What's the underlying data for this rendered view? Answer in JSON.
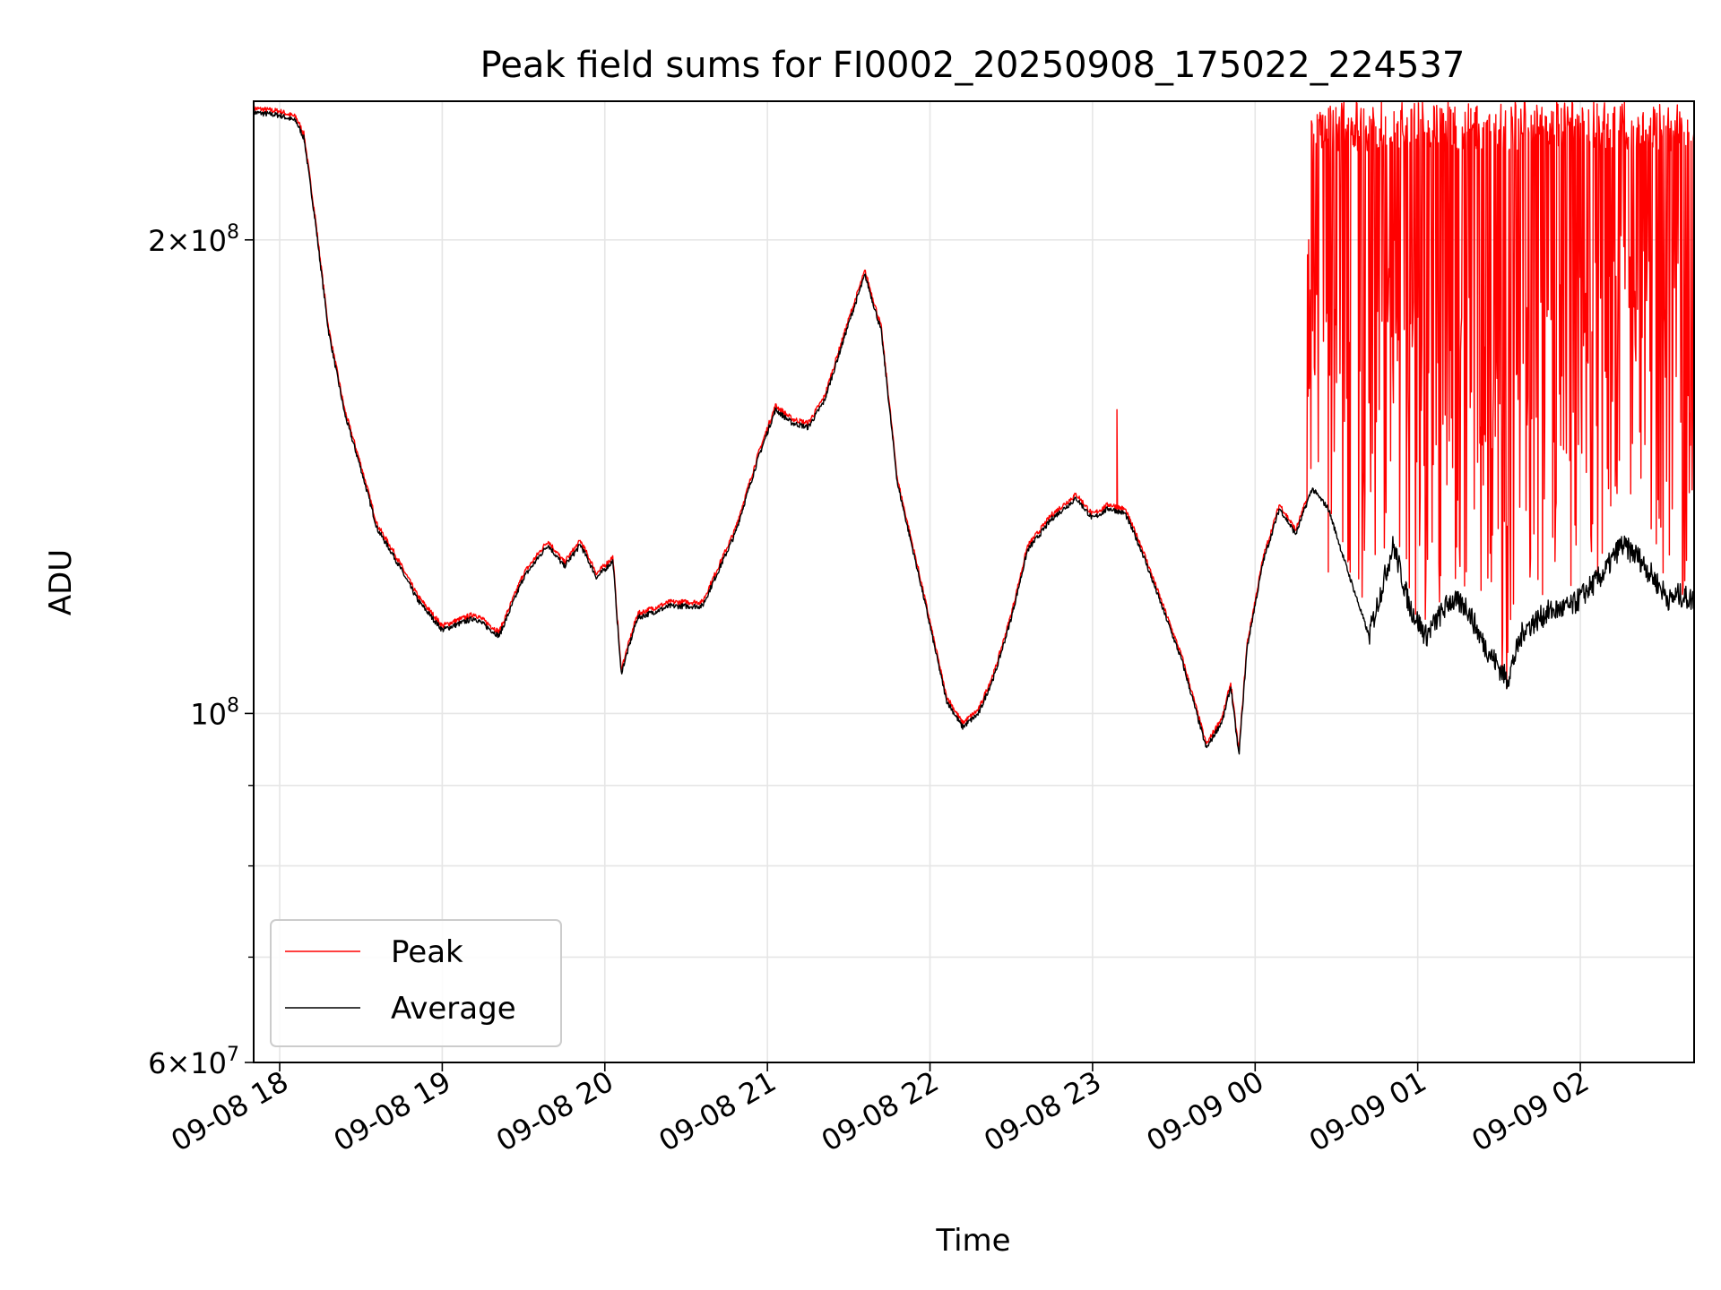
{
  "chart_data": {
    "type": "line",
    "title": "Peak field sums for FI0002_20250908_175022_224537",
    "xlabel": "Time",
    "ylabel": "ADU",
    "y_scale": "log",
    "ylim": [
      60000000,
      245000000
    ],
    "xlim_hours_since_2025_09_08_18_00": [
      -0.16,
      8.7
    ],
    "x_ticks": [
      {
        "t": 0,
        "label": "09-08 18"
      },
      {
        "t": 1,
        "label": "09-08 19"
      },
      {
        "t": 2,
        "label": "09-08 20"
      },
      {
        "t": 3,
        "label": "09-08 21"
      },
      {
        "t": 4,
        "label": "09-08 22"
      },
      {
        "t": 5,
        "label": "09-08 23"
      },
      {
        "t": 6,
        "label": "09-09 00"
      },
      {
        "t": 7,
        "label": "09-09 01"
      },
      {
        "t": 8,
        "label": "09-09 02"
      }
    ],
    "y_major_ticks": [
      {
        "value": 60000000,
        "mantissa": "6",
        "exponent": "7"
      },
      {
        "value": 100000000,
        "mantissa": "",
        "exponent": "8"
      },
      {
        "value": 200000000,
        "mantissa": "2",
        "exponent": "8"
      }
    ],
    "y_minor_ticks": [
      70000000,
      80000000,
      90000000
    ],
    "grid": true,
    "legend_position": "lower-left",
    "series": [
      {
        "name": "Peak",
        "color": "#ff0000",
        "note": "Closely tracks Average until ~09-09 00:20, after which it oscillates rapidly between the Average envelope and the top of the plot (~2.4e8).",
        "extra_points": [
          [
            5.15,
            156000000
          ],
          [
            6.45,
            123000000
          ]
        ]
      },
      {
        "name": "Average",
        "color": "#000000",
        "points": [
          [
            -0.16,
            241000000
          ],
          [
            0.0,
            240000000
          ],
          [
            0.1,
            238000000
          ],
          [
            0.15,
            232000000
          ],
          [
            0.22,
            205000000
          ],
          [
            0.3,
            175000000
          ],
          [
            0.4,
            155000000
          ],
          [
            0.5,
            143000000
          ],
          [
            0.6,
            131000000
          ],
          [
            0.7,
            126000000
          ],
          [
            0.85,
            118000000
          ],
          [
            1.0,
            113000000
          ],
          [
            1.1,
            114000000
          ],
          [
            1.2,
            115000000
          ],
          [
            1.35,
            112000000
          ],
          [
            1.5,
            122000000
          ],
          [
            1.65,
            128000000
          ],
          [
            1.75,
            124000000
          ],
          [
            1.85,
            128000000
          ],
          [
            1.95,
            122000000
          ],
          [
            2.05,
            125000000
          ],
          [
            2.1,
            106000000
          ],
          [
            2.2,
            115000000
          ],
          [
            2.4,
            117000000
          ],
          [
            2.6,
            117000000
          ],
          [
            2.8,
            130000000
          ],
          [
            2.95,
            146000000
          ],
          [
            3.05,
            156000000
          ],
          [
            3.15,
            153000000
          ],
          [
            3.25,
            152000000
          ],
          [
            3.35,
            158000000
          ],
          [
            3.5,
            177000000
          ],
          [
            3.6,
            190000000
          ],
          [
            3.7,
            175000000
          ],
          [
            3.8,
            140000000
          ],
          [
            3.95,
            120000000
          ],
          [
            4.1,
            102000000
          ],
          [
            4.2,
            98000000
          ],
          [
            4.3,
            100000000
          ],
          [
            4.4,
            106000000
          ],
          [
            4.5,
            115000000
          ],
          [
            4.6,
            127000000
          ],
          [
            4.75,
            133000000
          ],
          [
            4.9,
            137000000
          ],
          [
            5.0,
            133000000
          ],
          [
            5.1,
            135000000
          ],
          [
            5.2,
            134000000
          ],
          [
            5.3,
            127000000
          ],
          [
            5.4,
            119000000
          ],
          [
            5.55,
            108000000
          ],
          [
            5.7,
            95000000
          ],
          [
            5.8,
            99000000
          ],
          [
            5.85,
            104000000
          ],
          [
            5.9,
            94000000
          ],
          [
            5.95,
            110000000
          ],
          [
            6.05,
            125000000
          ],
          [
            6.15,
            135000000
          ],
          [
            6.25,
            130000000
          ],
          [
            6.35,
            139000000
          ],
          [
            6.45,
            135000000
          ],
          [
            6.55,
            125000000
          ],
          [
            6.7,
            112000000
          ],
          [
            6.85,
            128000000
          ],
          [
            6.95,
            117000000
          ],
          [
            7.05,
            112000000
          ],
          [
            7.2,
            118000000
          ],
          [
            7.3,
            117000000
          ],
          [
            7.4,
            111000000
          ],
          [
            7.5,
            107000000
          ],
          [
            7.55,
            105000000
          ],
          [
            7.65,
            113000000
          ],
          [
            7.8,
            116000000
          ],
          [
            7.95,
            117000000
          ],
          [
            8.05,
            120000000
          ],
          [
            8.15,
            123000000
          ],
          [
            8.25,
            128000000
          ],
          [
            8.35,
            126000000
          ],
          [
            8.45,
            122000000
          ],
          [
            8.55,
            118000000
          ],
          [
            8.6,
            119000000
          ],
          [
            8.7,
            118000000
          ]
        ]
      }
    ]
  }
}
